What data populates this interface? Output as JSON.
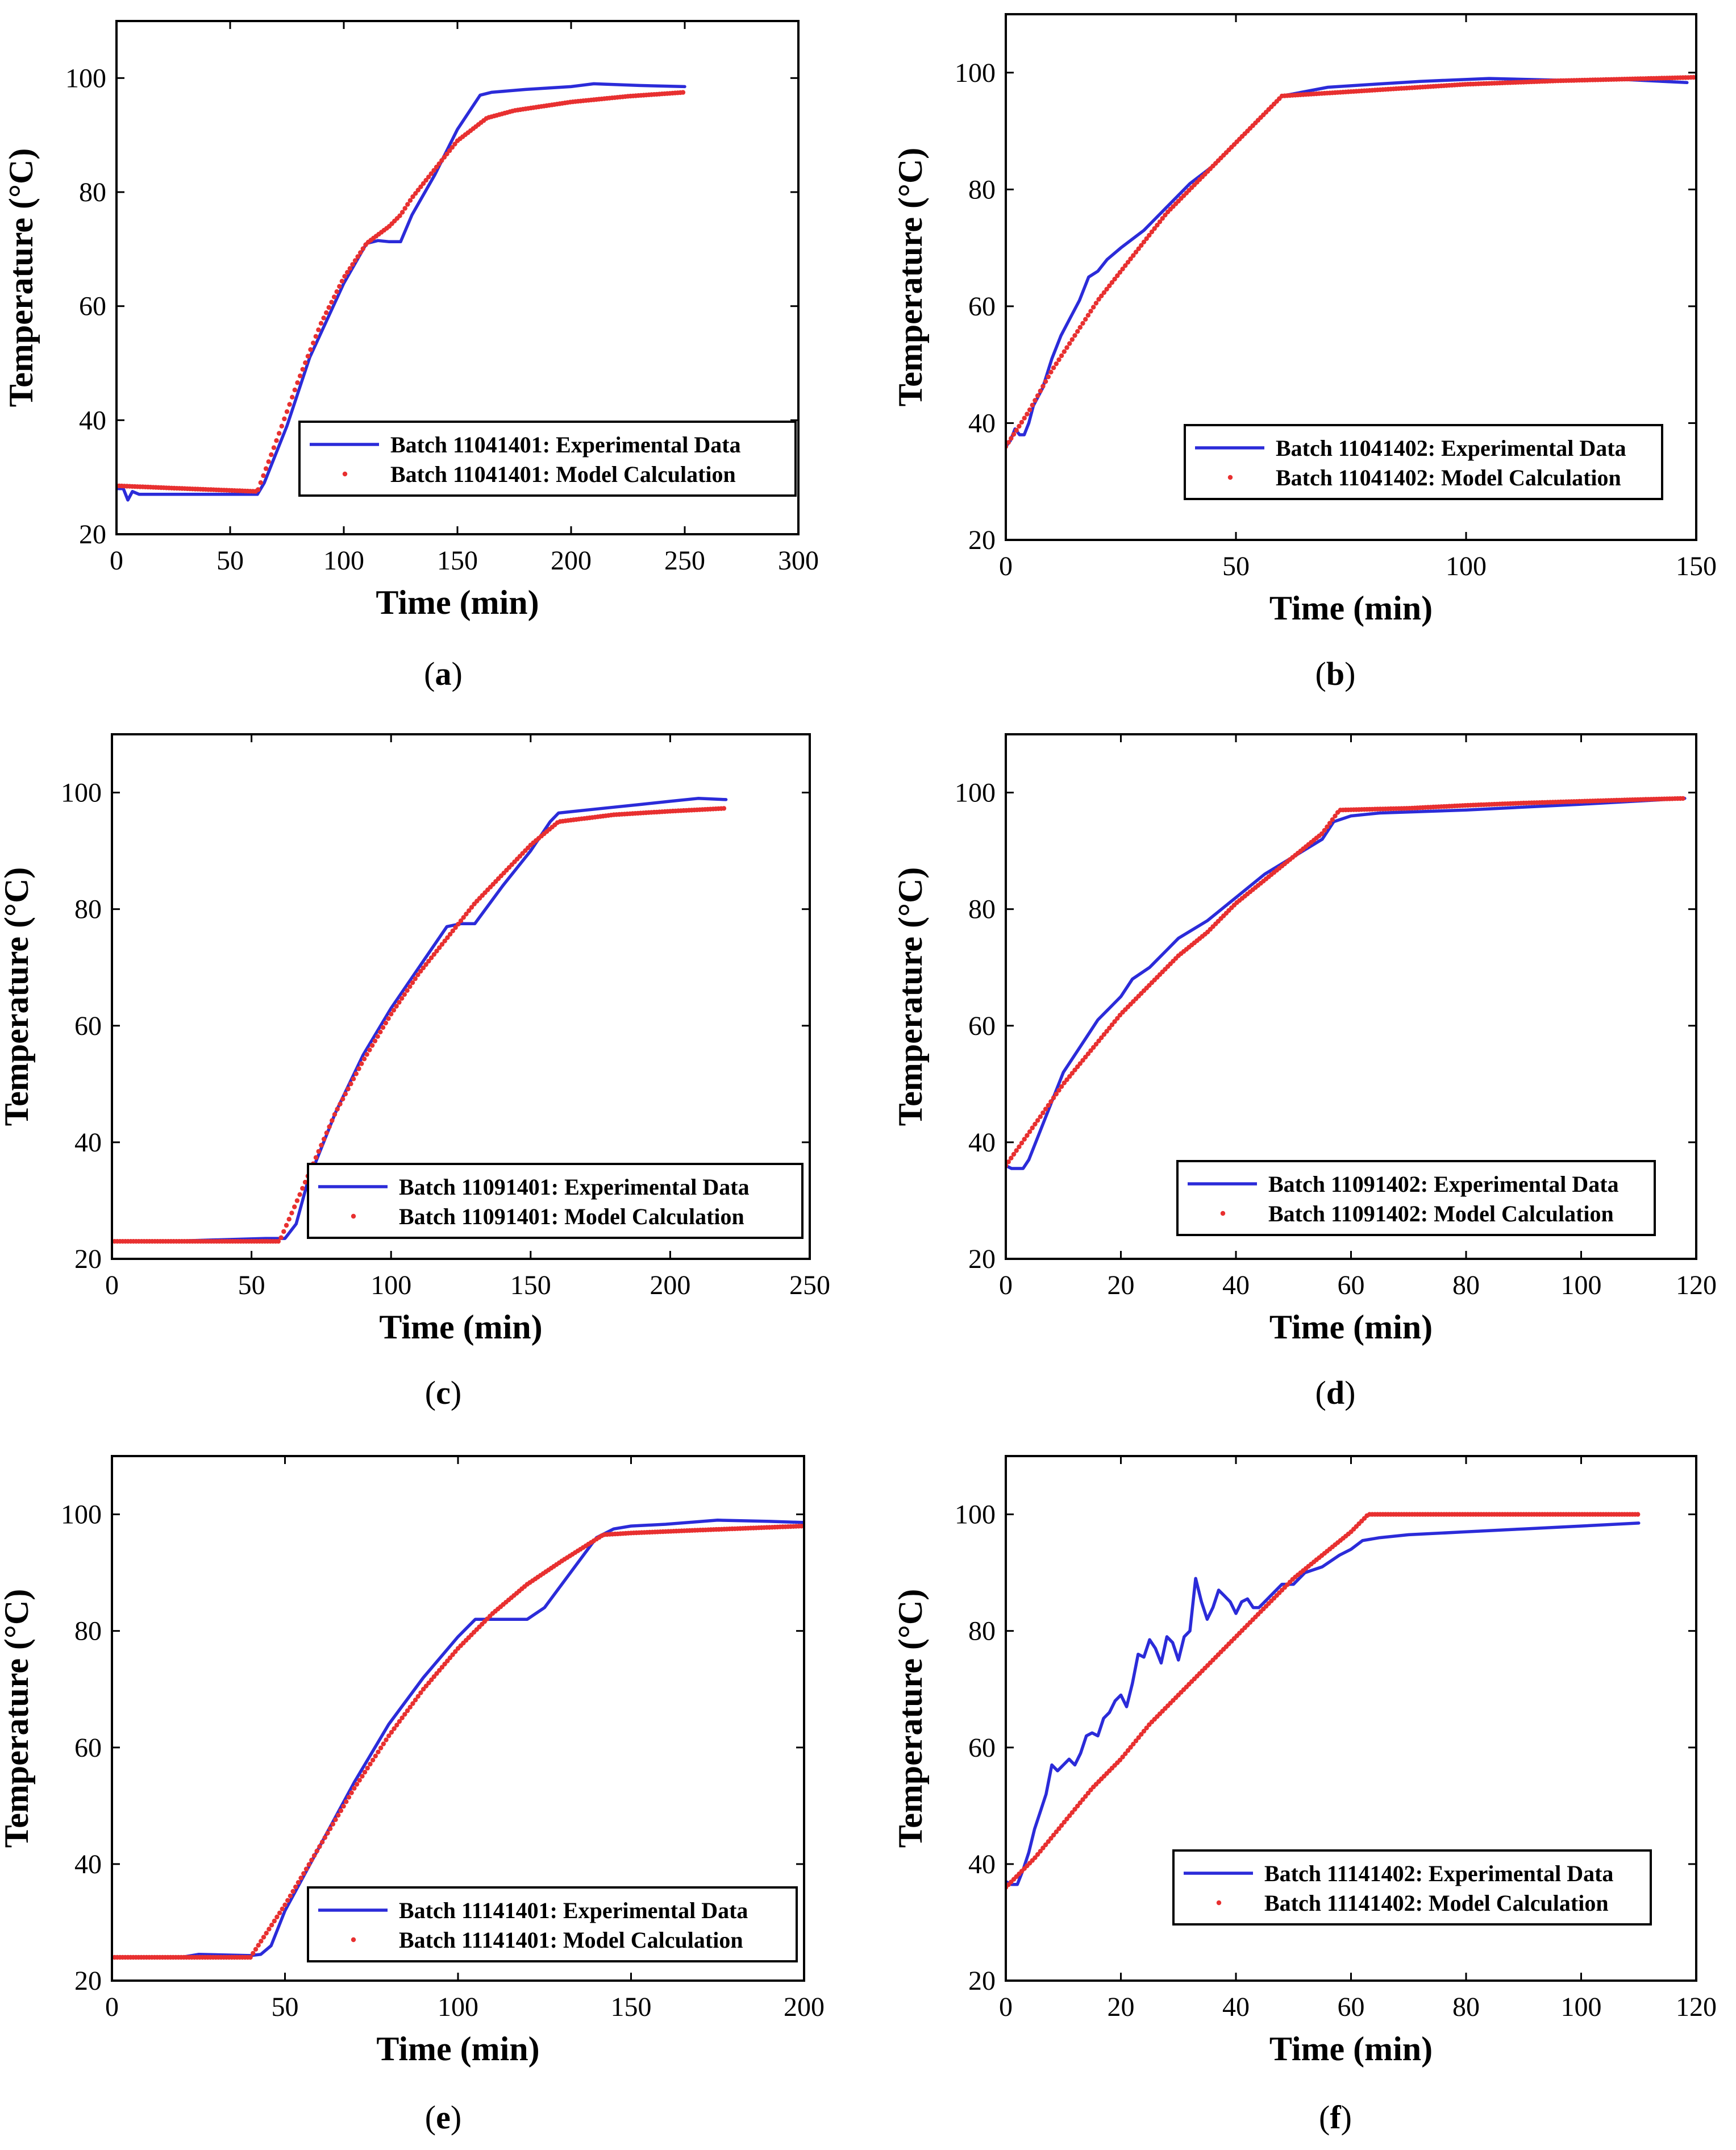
{
  "figure": {
    "caption_note": ""
  },
  "chart_data": [
    {
      "type": "line",
      "panel_label": "a",
      "xlabel": "Time (min)",
      "ylabel": "Temperature (°C)",
      "xlim": [
        0,
        300
      ],
      "ylim": [
        20,
        110
      ],
      "xticks": [
        0,
        50,
        100,
        150,
        200,
        250,
        300
      ],
      "yticks": [
        20,
        40,
        60,
        80,
        100
      ],
      "grid": false,
      "legend_position": "bottom-right",
      "series": [
        {
          "name": "Batch 11041401: Experimental Data",
          "style": "solid",
          "color": "#2b2bd9",
          "x": [
            0,
            3,
            5,
            7,
            10,
            30,
            62,
            65,
            75,
            85,
            100,
            110,
            115,
            120,
            125,
            130,
            140,
            150,
            160,
            165,
            180,
            200,
            210,
            230,
            250
          ],
          "y": [
            28,
            28,
            26,
            27.5,
            27,
            27,
            27,
            29,
            39,
            51,
            64,
            71,
            71.5,
            71.3,
            71.3,
            76,
            83,
            91,
            97,
            97.5,
            98,
            98.5,
            99,
            98.7,
            98.5
          ]
        },
        {
          "name": "Batch 11041401: Model Calculation",
          "style": "dotted",
          "color": "#e83030",
          "x": [
            0,
            30,
            62,
            70,
            80,
            90,
            100,
            110,
            120,
            125,
            130,
            140,
            150,
            163,
            175,
            200,
            225,
            250
          ],
          "y": [
            28.5,
            28,
            27.5,
            36,
            47,
            57,
            65,
            71,
            74,
            76,
            79,
            84,
            89,
            93,
            94.3,
            95.8,
            96.8,
            97.5
          ]
        }
      ]
    },
    {
      "type": "line",
      "panel_label": "b",
      "xlabel": "Time (min)",
      "ylabel": "Temperature (°C)",
      "xlim": [
        0,
        150
      ],
      "ylim": [
        20,
        110
      ],
      "xticks": [
        0,
        50,
        100,
        150
      ],
      "yticks": [
        20,
        40,
        60,
        80,
        100
      ],
      "grid": false,
      "legend_position": "bottom-right",
      "series": [
        {
          "name": "Batch 11041402: Experimental Data",
          "style": "solid",
          "color": "#2b2bd9",
          "x": [
            0,
            1,
            2,
            3,
            4,
            5,
            6,
            8,
            10,
            12,
            14,
            16,
            18,
            20,
            22,
            25,
            30,
            35,
            40,
            45,
            50,
            55,
            60,
            70,
            80,
            90,
            105,
            120,
            135,
            148
          ],
          "y": [
            36,
            37,
            39,
            38,
            38,
            40,
            43,
            46,
            51,
            55,
            58,
            61,
            65,
            66,
            68,
            70,
            73,
            77,
            81,
            84,
            88,
            92,
            96,
            97.5,
            98,
            98.5,
            99,
            98.7,
            98.8,
            98.3
          ]
        },
        {
          "name": "Batch 11041402: Model Calculation",
          "style": "dotted",
          "color": "#e83030",
          "x": [
            0,
            5,
            10,
            15,
            20,
            25,
            30,
            35,
            40,
            45,
            50,
            55,
            60,
            70,
            80,
            90,
            100,
            110,
            120,
            130,
            140,
            150
          ],
          "y": [
            36,
            42,
            49,
            55,
            61,
            66,
            71,
            76,
            80,
            84,
            88,
            92,
            96,
            96.5,
            97,
            97.5,
            98,
            98.3,
            98.6,
            98.8,
            99,
            99.2
          ]
        }
      ]
    },
    {
      "type": "line",
      "panel_label": "c",
      "xlabel": "Time (min)",
      "ylabel": "Temperature (°C)",
      "xlim": [
        0,
        250
      ],
      "ylim": [
        20,
        110
      ],
      "xticks": [
        0,
        50,
        100,
        150,
        200,
        250
      ],
      "yticks": [
        20,
        40,
        60,
        80,
        100
      ],
      "grid": false,
      "legend_position": "bottom-right",
      "series": [
        {
          "name": "Batch 11091401: Experimental Data",
          "style": "solid",
          "color": "#2b2bd9",
          "x": [
            0,
            20,
            40,
            55,
            62,
            66,
            70,
            80,
            90,
            100,
            110,
            120,
            125,
            130,
            140,
            150,
            157,
            160,
            170,
            180,
            190,
            200,
            210,
            220
          ],
          "y": [
            23,
            23,
            23.3,
            23.5,
            23.5,
            26,
            33,
            45,
            55,
            63,
            70,
            77,
            77.5,
            77.5,
            84,
            90,
            95,
            96.5,
            97,
            97.5,
            98,
            98.5,
            99,
            98.8
          ]
        },
        {
          "name": "Batch 11091401: Model Calculation",
          "style": "dotted",
          "color": "#e83030",
          "x": [
            0,
            30,
            60,
            70,
            80,
            90,
            100,
            110,
            120,
            130,
            140,
            150,
            160,
            180,
            200,
            220
          ],
          "y": [
            23,
            23,
            23,
            34,
            45,
            54,
            62,
            69,
            75,
            81,
            86,
            91,
            95,
            96.2,
            96.8,
            97.3
          ]
        }
      ]
    },
    {
      "type": "line",
      "panel_label": "d",
      "xlabel": "Time (min)",
      "ylabel": "Temperature (°C)",
      "xlim": [
        0,
        120
      ],
      "ylim": [
        20,
        110
      ],
      "xticks": [
        0,
        20,
        40,
        60,
        80,
        100,
        120
      ],
      "yticks": [
        20,
        40,
        60,
        80,
        100
      ],
      "grid": false,
      "legend_position": "bottom-right",
      "series": [
        {
          "name": "Batch 11091402: Experimental Data",
          "style": "solid",
          "color": "#2b2bd9",
          "x": [
            0,
            1,
            3,
            4,
            6,
            8,
            10,
            12,
            14,
            16,
            18,
            20,
            22,
            25,
            28,
            30,
            35,
            40,
            45,
            50,
            55,
            57,
            60,
            65,
            80,
            100,
            118
          ],
          "y": [
            36,
            35.5,
            35.5,
            37,
            42,
            47,
            52,
            55,
            58,
            61,
            63,
            65,
            68,
            70,
            73,
            75,
            78,
            82,
            86,
            89,
            92,
            95,
            96,
            96.5,
            97,
            98,
            99
          ]
        },
        {
          "name": "Batch 11091402: Model Calculation",
          "style": "dotted",
          "color": "#e83030",
          "x": [
            0,
            5,
            10,
            15,
            20,
            25,
            30,
            35,
            40,
            45,
            50,
            55,
            58,
            70,
            80,
            90,
            100,
            110,
            118
          ],
          "y": [
            36,
            43,
            50,
            56,
            62,
            67,
            72,
            76,
            81,
            85,
            89,
            93,
            97,
            97.3,
            97.8,
            98.2,
            98.5,
            98.8,
            99
          ]
        }
      ]
    },
    {
      "type": "line",
      "panel_label": "e",
      "xlabel": "Time (min)",
      "ylabel": "Temperature (°C)",
      "xlim": [
        0,
        200
      ],
      "ylim": [
        20,
        110
      ],
      "xticks": [
        0,
        50,
        100,
        150,
        200
      ],
      "yticks": [
        20,
        40,
        60,
        80,
        100
      ],
      "grid": false,
      "legend_position": "bottom-right",
      "series": [
        {
          "name": "Batch 11141401: Experimental Data",
          "style": "solid",
          "color": "#2b2bd9",
          "x": [
            0,
            20,
            25,
            40,
            43,
            46,
            50,
            60,
            70,
            80,
            90,
            100,
            105,
            110,
            120,
            125,
            130,
            140,
            145,
            150,
            160,
            175,
            190,
            200
          ],
          "y": [
            24,
            24,
            24.5,
            24.3,
            24.5,
            26,
            32,
            43,
            54,
            64,
            72,
            79,
            82,
            82,
            82,
            84,
            88,
            96,
            97.5,
            98,
            98.3,
            99,
            98.8,
            98.6
          ]
        },
        {
          "name": "Batch 11141401: Model Calculation",
          "style": "dotted",
          "color": "#e83030",
          "x": [
            0,
            20,
            40,
            50,
            60,
            70,
            80,
            90,
            100,
            110,
            120,
            130,
            142,
            150,
            170,
            200
          ],
          "y": [
            24,
            24,
            24,
            33,
            43,
            53,
            62,
            70,
            77,
            83,
            88,
            92,
            96.5,
            96.8,
            97.3,
            98
          ]
        }
      ]
    },
    {
      "type": "line",
      "panel_label": "f",
      "xlabel": "Time (min)",
      "ylabel": "Temperature (°C)",
      "xlim": [
        0,
        120
      ],
      "ylim": [
        20,
        110
      ],
      "xticks": [
        0,
        20,
        40,
        60,
        80,
        100,
        120
      ],
      "yticks": [
        20,
        40,
        60,
        80,
        100
      ],
      "grid": false,
      "legend_position": "bottom-right",
      "series": [
        {
          "name": "Batch 11141402: Experimental Data",
          "style": "solid",
          "color": "#2b2bd9",
          "x": [
            0,
            1,
            2,
            3,
            4,
            5,
            6,
            7,
            8,
            9,
            10,
            11,
            12,
            13,
            14,
            15,
            16,
            17,
            18,
            19,
            20,
            21,
            22,
            23,
            24,
            25,
            26,
            27,
            28,
            29,
            30,
            31,
            32,
            33,
            34,
            35,
            36,
            37,
            38,
            39,
            40,
            41,
            42,
            43,
            44,
            45,
            46,
            48,
            50,
            52,
            55,
            58,
            60,
            62,
            65,
            70,
            80,
            90,
            100,
            110
          ],
          "y": [
            37,
            36.5,
            36.5,
            39,
            42,
            46,
            49,
            52,
            57,
            56,
            57,
            58,
            57,
            59,
            62,
            62.5,
            62,
            65,
            66,
            68,
            69,
            67,
            71,
            76,
            75.5,
            78.5,
            77,
            74.5,
            79,
            78,
            75,
            79,
            80,
            89,
            85,
            82,
            84,
            87,
            86,
            85,
            83,
            85,
            85.5,
            84,
            84,
            85,
            86,
            88,
            88,
            90,
            91,
            93,
            94,
            95.5,
            96,
            96.5,
            97,
            97.5,
            98,
            98.5
          ]
        },
        {
          "name": "Batch 11141402: Model Calculation",
          "style": "dotted",
          "color": "#e83030",
          "x": [
            0,
            5,
            10,
            15,
            20,
            25,
            30,
            35,
            40,
            45,
            50,
            55,
            60,
            63,
            70,
            80,
            90,
            100,
            110
          ],
          "y": [
            36,
            41,
            47,
            53,
            58,
            64,
            69,
            74,
            79,
            84,
            89,
            93,
            97,
            100,
            100,
            100,
            100,
            100,
            100
          ]
        }
      ]
    }
  ]
}
